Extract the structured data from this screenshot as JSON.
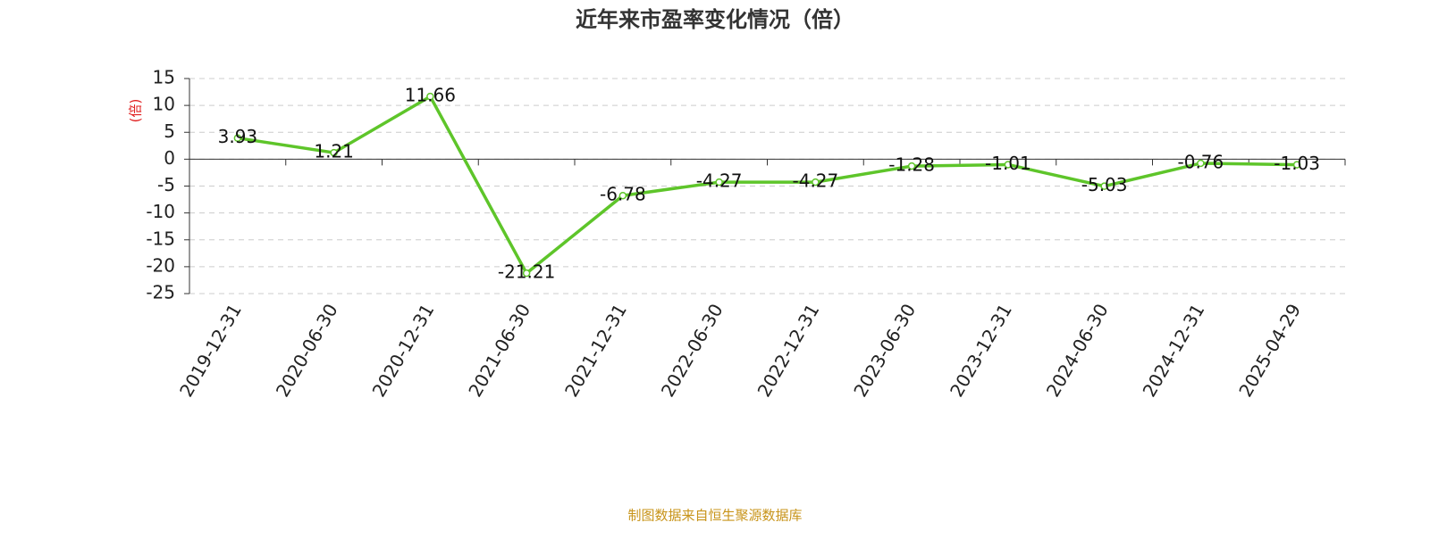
{
  "chart_data": {
    "type": "line",
    "title": "近年来市盈率变化情况（倍）",
    "y_label": "(倍)",
    "source": "制图数据来自恒生聚源数据库",
    "categories": [
      "2019-12-31",
      "2020-06-30",
      "2020-12-31",
      "2021-06-30",
      "2021-12-31",
      "2022-06-30",
      "2022-12-31",
      "2023-06-30",
      "2023-12-31",
      "2024-06-30",
      "2024-12-31",
      "2025-04-29"
    ],
    "values": [
      3.93,
      1.21,
      11.66,
      -21.21,
      -6.78,
      -4.27,
      -4.27,
      -1.28,
      -1.01,
      -5.03,
      -0.76,
      -1.03
    ],
    "color": "#5ec52a",
    "ylim": [
      -25,
      15
    ],
    "yticks": [
      -25,
      -20,
      -15,
      -10,
      -5,
      0,
      5,
      10,
      15
    ],
    "grid": true
  }
}
